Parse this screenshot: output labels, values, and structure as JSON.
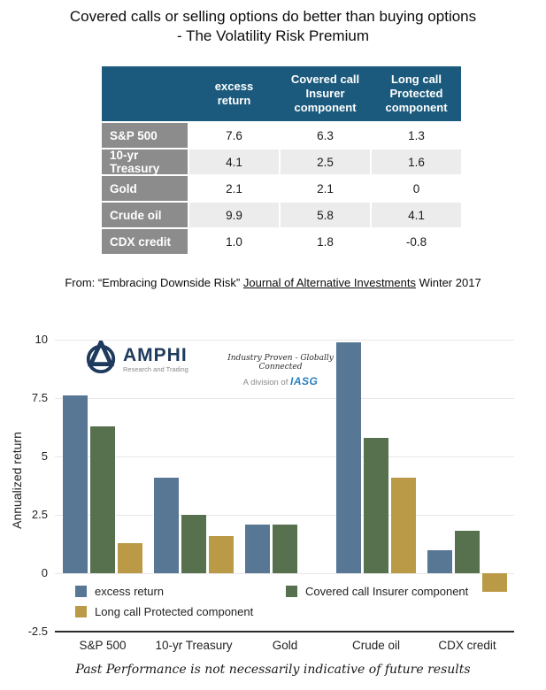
{
  "title": {
    "line1": "Covered calls or selling options do better than buying options",
    "line2": "- The Volatility Risk Premium"
  },
  "table": {
    "columns": [
      "excess\nreturn",
      "Covered call\nInsurer\ncomponent",
      "Long call\nProtected\ncomponent"
    ],
    "rows": [
      {
        "label": "S&P 500",
        "values": [
          "7.6",
          "6.3",
          "1.3"
        ]
      },
      {
        "label": "10-yr Treasury",
        "values": [
          "4.1",
          "2.5",
          "1.6"
        ]
      },
      {
        "label": "Gold",
        "values": [
          "2.1",
          "2.1",
          "0"
        ]
      },
      {
        "label": "Crude oil",
        "values": [
          "9.9",
          "5.8",
          "4.1"
        ]
      },
      {
        "label": "CDX credit",
        "values": [
          "1.0",
          "1.8",
          "-0.8"
        ]
      }
    ]
  },
  "source": {
    "prefix": "From: “Embracing Downside Risk” ",
    "journal": "Journal of Alternative Investments",
    "suffix": " Winter 2017"
  },
  "logo": {
    "name": "AMPHI",
    "subtitle": "Research and Trading",
    "tagline": "Industry Proven - Globally Connected",
    "division_prefix": "A division of ",
    "division_name": "IASG"
  },
  "chart_data": {
    "type": "bar",
    "categories": [
      "S&P 500",
      "10-yr Treasury",
      "Gold",
      "Crude oil",
      "CDX credit"
    ],
    "series": [
      {
        "name": "excess return",
        "color": "#577795",
        "values": [
          7.6,
          4.1,
          2.1,
          9.9,
          1.0
        ]
      },
      {
        "name": "Covered call Insurer component",
        "color": "#57714e",
        "values": [
          6.3,
          2.5,
          2.1,
          5.8,
          1.8
        ]
      },
      {
        "name": "Long call Protected component",
        "color": "#bb9a47",
        "values": [
          1.3,
          1.6,
          0,
          4.1,
          -0.8
        ]
      }
    ],
    "ylabel": "Annualized return",
    "yticks": [
      "10",
      "7.5",
      "5",
      "2.5",
      "0",
      "-2.5"
    ],
    "ylim": [
      -2.5,
      10
    ],
    "grid": true,
    "legend_position": "inside-bottom"
  },
  "footer": "Past Performance is not necessarily indicative of future results",
  "colors": {
    "header_bg": "#1b5a7d",
    "row_label_bg": "#8c8c8c",
    "alt_row_bg": "#ececec",
    "logo_navy": "#1e3a5c",
    "iasg_blue": "#2a7fc1"
  }
}
